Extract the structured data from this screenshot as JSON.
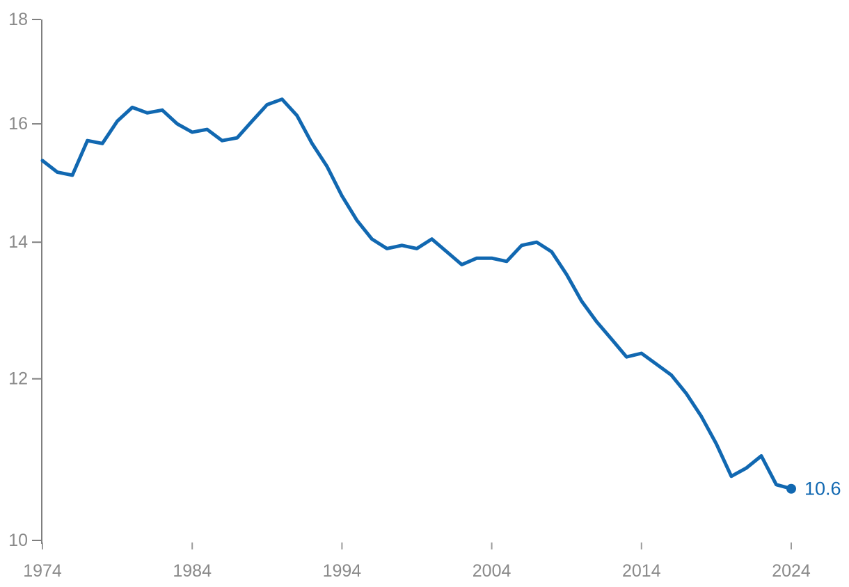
{
  "colors": {
    "line": "#1168B1",
    "axis": "#7f7f7f",
    "decade_tick": "#9b9b9b",
    "tick_label": "#8a8a8a",
    "background": "#ffffff"
  },
  "chart_data": {
    "type": "line",
    "grid": false,
    "legend": "none",
    "x": [
      1974,
      1975,
      1976,
      1977,
      1978,
      1979,
      1980,
      1981,
      1982,
      1983,
      1984,
      1985,
      1986,
      1987,
      1988,
      1989,
      1990,
      1991,
      1992,
      1993,
      1994,
      1995,
      1996,
      1997,
      1998,
      1999,
      2000,
      2001,
      2002,
      2003,
      2004,
      2005,
      2006,
      2007,
      2008,
      2009,
      2010,
      2011,
      2012,
      2013,
      2014,
      2015,
      2016,
      2017,
      2018,
      2019,
      2020,
      2021,
      2022,
      2023,
      2024
    ],
    "series": [
      {
        "name": "value",
        "color": "#1168B1",
        "values": [
          15.35,
          15.15,
          15.1,
          15.7,
          15.65,
          16.05,
          16.3,
          16.2,
          16.25,
          16.0,
          15.85,
          15.9,
          15.7,
          15.75,
          16.05,
          16.35,
          16.45,
          16.15,
          15.65,
          15.25,
          14.75,
          14.35,
          14.05,
          13.9,
          13.95,
          13.9,
          14.05,
          13.85,
          13.65,
          13.75,
          13.75,
          13.7,
          13.95,
          14.0,
          13.85,
          13.5,
          13.1,
          12.8,
          12.55,
          12.3,
          12.35,
          12.2,
          12.05,
          11.8,
          11.5,
          11.15,
          10.75,
          10.85,
          11.0,
          10.65,
          10.6
        ]
      }
    ],
    "end_label": "10.6",
    "x_axis": {
      "min": 1974,
      "max": 2024,
      "ticks": [
        1974,
        1984,
        1994,
        2004,
        2014,
        2024
      ],
      "tick_labels": [
        "1974",
        "1984",
        "1994",
        "2004",
        "2014",
        "2024"
      ]
    },
    "y_axis": {
      "min": 10,
      "max": 18,
      "scale": "log",
      "ticks": [
        10,
        12,
        14,
        16,
        18
      ],
      "tick_labels": [
        "10",
        "12",
        "14",
        "16",
        "18"
      ]
    }
  }
}
